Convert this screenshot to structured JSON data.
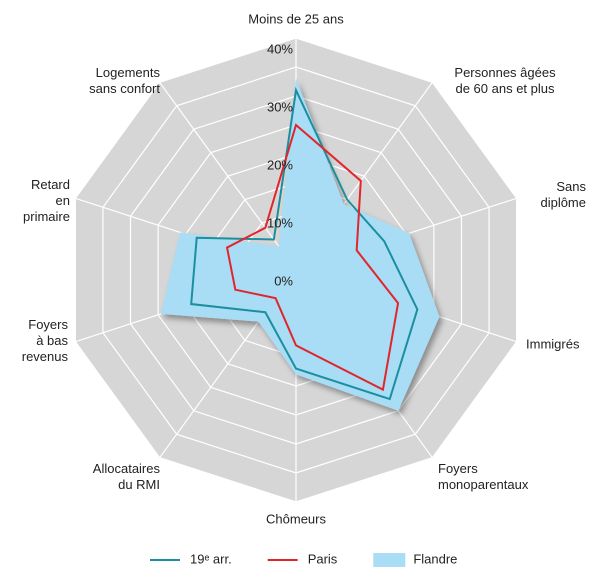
{
  "chart_data": {
    "type": "radar",
    "categories": [
      "Moins de 25 ans",
      "Personnes âgées\nde 60 ans et plus",
      "Sans\ndiplôme",
      "Immigrés",
      "Foyers\nmonoparentaux",
      "Chômeurs",
      "Allocataires\ndu RMI",
      "Foyers\nà bas\nrevenus",
      "Retard\nen\nprimaire",
      "Logements\nsans confort"
    ],
    "series": [
      {
        "name": "19ᵉ arr.",
        "color": "#1a8f9e",
        "style": "line",
        "values": [
          31,
          15,
          16,
          22,
          27.5,
          17,
          9,
          19,
          18,
          6.5
        ]
      },
      {
        "name": "Paris",
        "color": "#e0262b",
        "style": "line",
        "values": [
          25,
          19,
          11,
          18.5,
          25.5,
          13,
          6,
          11,
          12.5,
          9
        ]
      },
      {
        "name": "Flandre",
        "color": "#a9dcf5",
        "style": "area",
        "values": [
          33,
          14,
          20.5,
          26,
          30,
          18,
          11,
          24.5,
          21,
          5
        ]
      }
    ],
    "ylim": [
      0,
      40
    ],
    "yticks": [
      {
        "value": 0,
        "label": "0%"
      },
      {
        "value": 10,
        "label": "10%"
      },
      {
        "value": 20,
        "label": "20%"
      },
      {
        "value": 30,
        "label": "30%"
      },
      {
        "value": 40,
        "label": "40%"
      }
    ]
  }
}
